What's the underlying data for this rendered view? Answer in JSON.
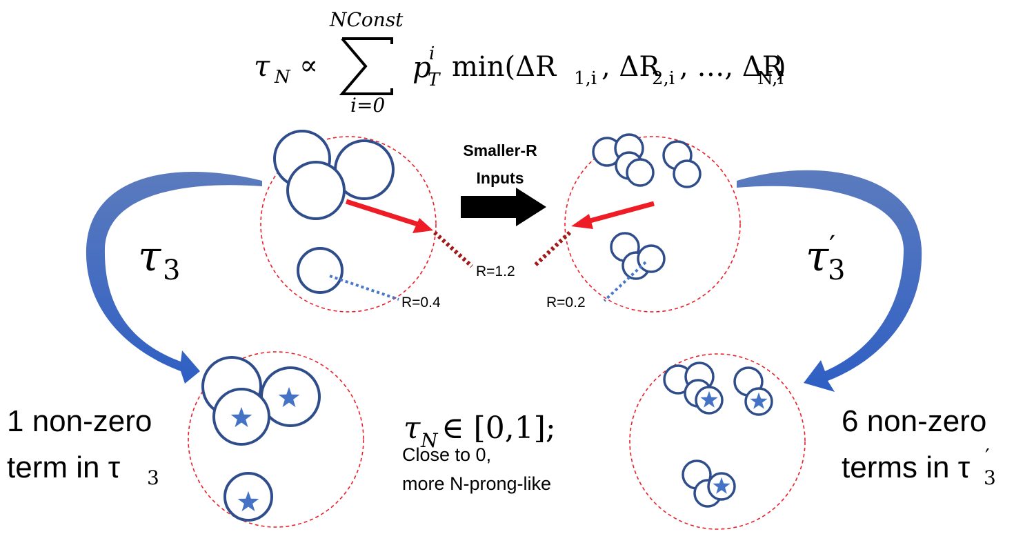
{
  "formula": {
    "lhs": "τ",
    "lhs_sub": "N",
    "prop": "∝",
    "sum_upper": "NConst",
    "sum_lower": "i=0",
    "p": "p",
    "p_sup": "i",
    "p_sub": "T",
    "min_text": "min(ΔR",
    "sub1": "1,i",
    "sep1": ", ΔR",
    "sub2": "2,i",
    "dots": ", …, ΔR",
    "subN": "N,i",
    "close": ")"
  },
  "arrow_label": {
    "line1": "Smaller-R",
    "line2": "Inputs"
  },
  "radius_labels": {
    "left_small": "R=0.4",
    "center": "R=1.2",
    "right_small": "R=0.2"
  },
  "tau_left": {
    "symbol": "τ",
    "sub": "3"
  },
  "tau_right": {
    "symbol": "τ",
    "prime": "′",
    "sub": "3"
  },
  "caption_left": {
    "line1": "1 non-zero",
    "line2": "term in τ",
    "sub": "3"
  },
  "caption_right": {
    "line1": "6 non-zero",
    "line2": "terms in τ",
    "prime": "′",
    "sub": "3"
  },
  "caption_center": {
    "math": "τ",
    "sub": "N",
    "range": " ∈ [0,1];",
    "line2": "Close to 0,",
    "line3": "more N-prong-like"
  },
  "colors": {
    "circle_stroke": "#2f4d8a",
    "dashed_jet": "#e8202a",
    "red_arrow": "#ee1c25",
    "dark_red_dots": "#a01818",
    "blue_dots": "#4a78c8",
    "star": "#4472c4",
    "curve_arrow": "#3b62b4"
  }
}
